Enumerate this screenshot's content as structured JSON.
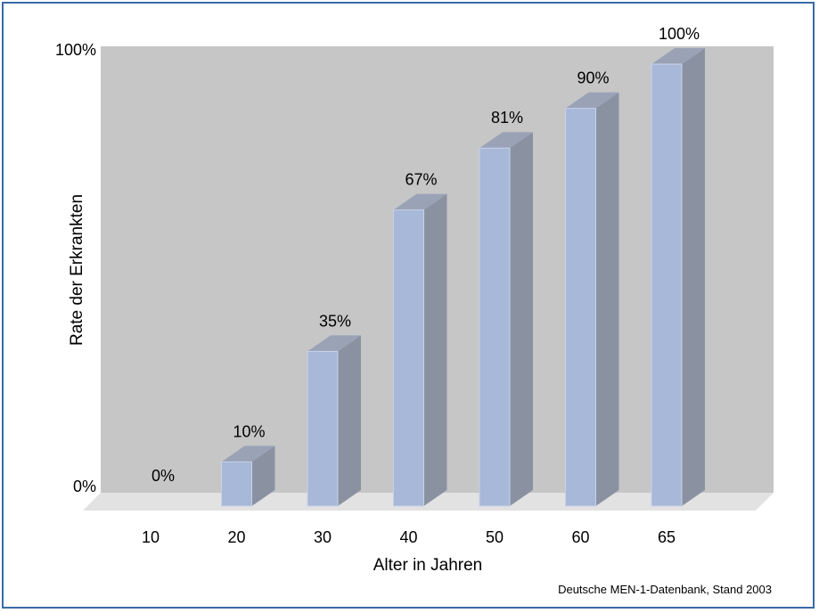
{
  "colors": {
    "frame": "#3a6aa8",
    "back_wall": "#c6c6c6",
    "floor": "#e2e2e2",
    "bar_front": "#a8b8d8",
    "bar_side": "#8a92a2",
    "bar_top": "#9aa3b6"
  },
  "chart_data": {
    "type": "bar",
    "three_d": true,
    "categories": [
      "10",
      "20",
      "30",
      "40",
      "50",
      "60",
      "65"
    ],
    "values": [
      0,
      10,
      35,
      67,
      81,
      90,
      100
    ],
    "data_labels": [
      "0%",
      "10%",
      "35%",
      "67%",
      "81%",
      "90%",
      "100%"
    ],
    "xlabel": "Alter in Jahren",
    "ylabel": "Rate der Erkrankten",
    "ylim": [
      0,
      100
    ],
    "y_ticks": [
      "0%",
      "100%"
    ],
    "grid": false,
    "legend": "none",
    "source_note": "Deutsche MEN-1-Datenbank, Stand 2003"
  }
}
